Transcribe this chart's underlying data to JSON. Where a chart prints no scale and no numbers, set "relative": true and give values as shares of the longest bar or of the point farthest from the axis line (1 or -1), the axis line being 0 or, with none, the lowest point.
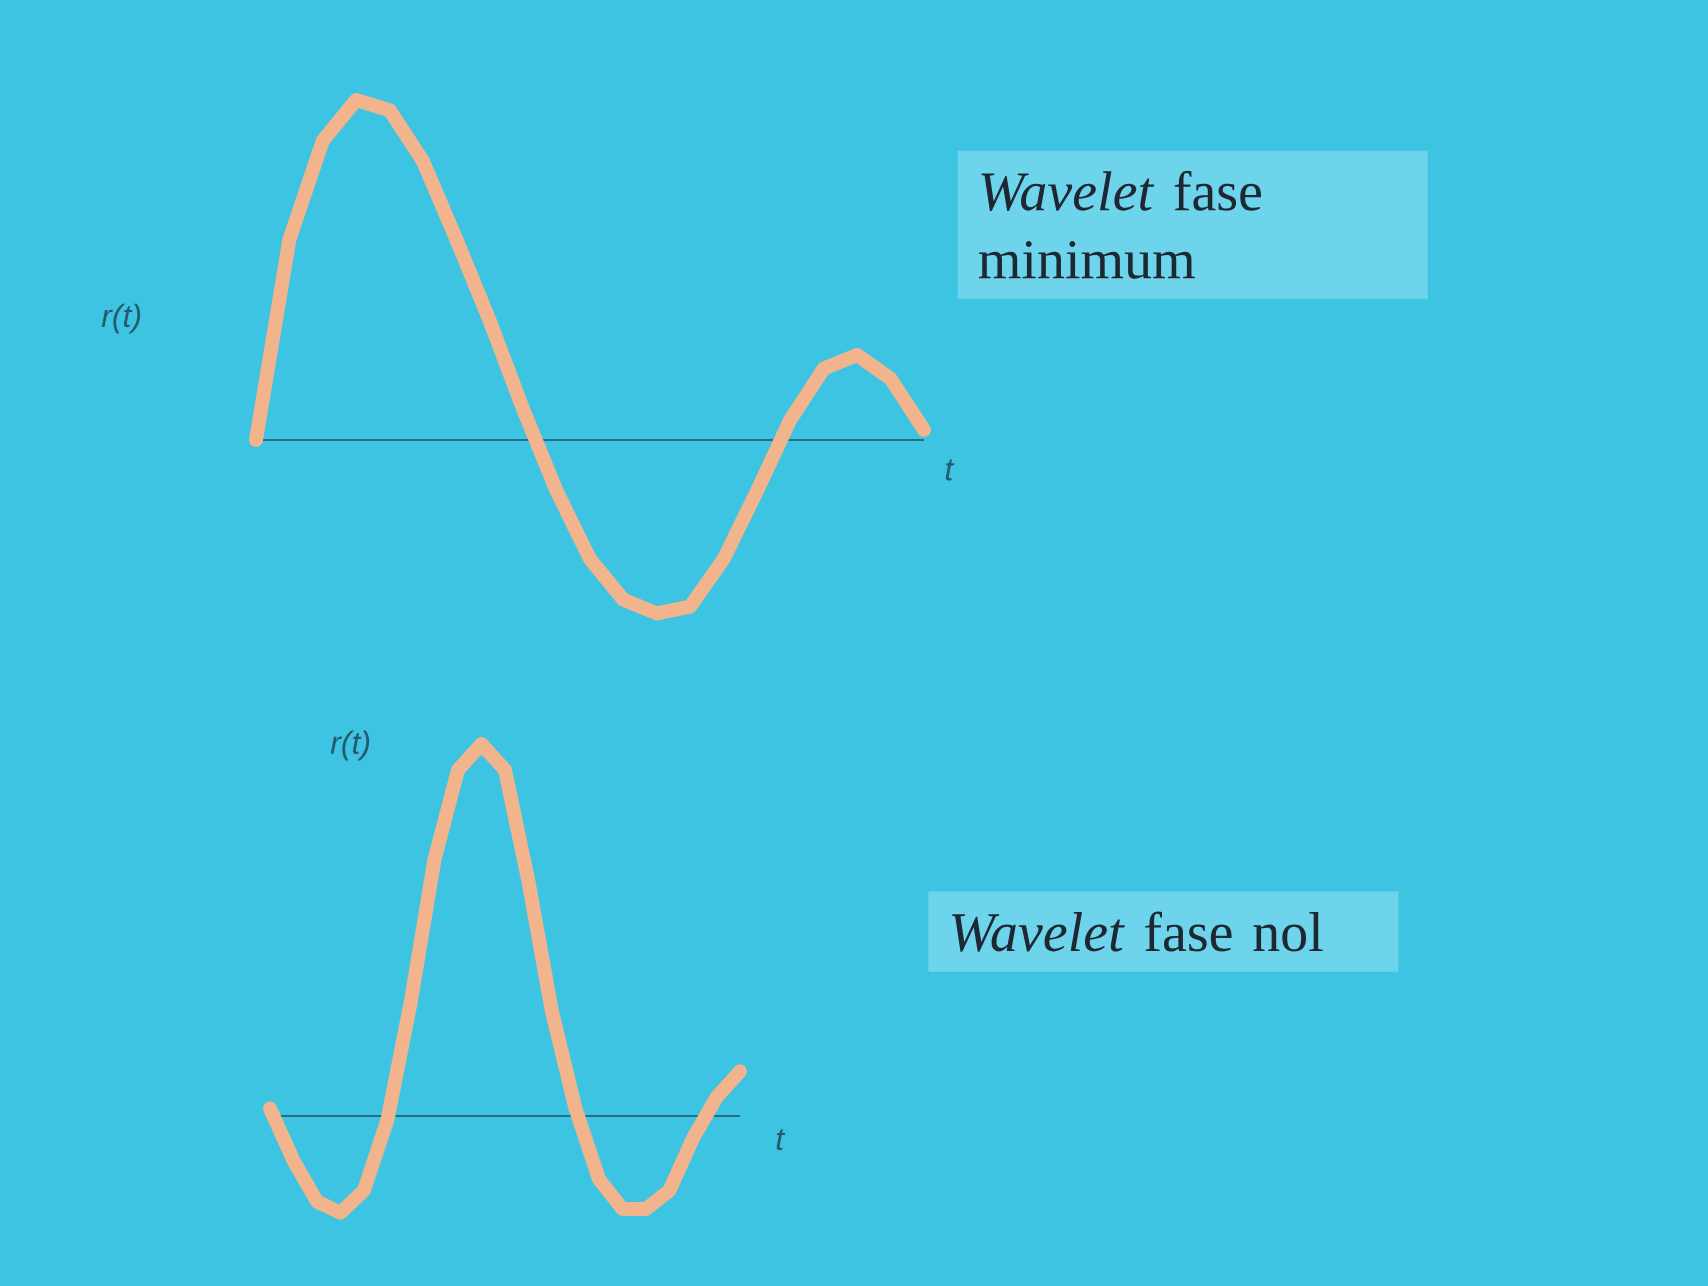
{
  "chart_data": [
    {
      "type": "line",
      "relative": true,
      "color": "#f2b48c",
      "xlabel": "t",
      "ylabel": "r(t)",
      "categories": [
        null,
        null,
        null,
        null,
        null,
        null,
        null,
        null,
        null,
        null,
        null,
        null,
        null,
        null,
        null,
        null,
        null,
        null,
        null,
        null,
        null
      ],
      "values": [
        0,
        0.59,
        0.88,
        1.0,
        0.97,
        0.82,
        0.59,
        0.35,
        0.09,
        -0.15,
        -0.35,
        -0.47,
        -0.51,
        -0.49,
        -0.35,
        -0.15,
        0.06,
        0.21,
        0.25,
        0.18,
        0.03
      ],
      "ref_lines": [
        {
          "axis": "y",
          "value": 0
        }
      ],
      "annotations": [
        "*Wavelet* fase minimum"
      ]
    },
    {
      "type": "line",
      "relative": true,
      "color": "#f2b48c",
      "xlabel": "t",
      "ylabel": "r(t)",
      "categories": [
        null,
        null,
        null,
        null,
        null,
        null,
        null,
        null,
        null,
        null,
        null,
        null,
        null,
        null,
        null,
        null,
        null,
        null,
        null,
        null,
        null
      ],
      "values": [
        0.02,
        -0.12,
        -0.23,
        -0.26,
        -0.2,
        -0.01,
        0.31,
        0.69,
        0.93,
        1.0,
        0.93,
        0.63,
        0.28,
        0.02,
        -0.17,
        -0.25,
        -0.25,
        -0.2,
        -0.06,
        0.05,
        0.12
      ],
      "ref_lines": [
        {
          "axis": "y",
          "value": 0
        }
      ],
      "annotations": [
        "*Wavelet* fase nol"
      ]
    }
  ]
}
